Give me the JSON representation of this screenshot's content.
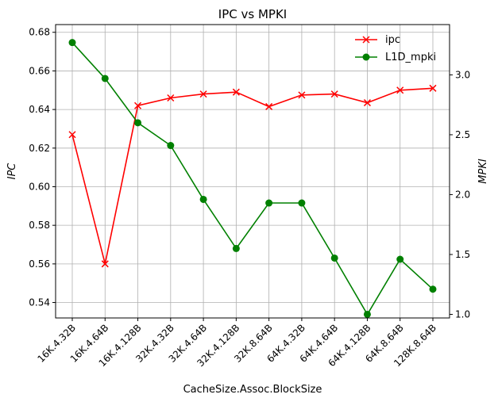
{
  "chart_data": {
    "type": "line",
    "title": "IPC vs MPKI",
    "xlabel": "CacheSize.Assoc.BlockSize",
    "ylabel_left": "IPC",
    "ylabel_right": "MPKI",
    "categories": [
      "16K.4.32B",
      "16K.4.64B",
      "16K.4.128B",
      "32K.4.32B",
      "32K.4.64B",
      "32K.4.128B",
      "32K.8.64B",
      "64K.4.32B",
      "64K.4.64B",
      "64K.4.128B",
      "64K.8.64B",
      "128K.8.64B"
    ],
    "ylim_left": [
      0.532,
      0.684
    ],
    "yticks_left": [
      0.54,
      0.56,
      0.58,
      0.6,
      0.62,
      0.64,
      0.66,
      0.68
    ],
    "yticks_left_labels": [
      "0.54",
      "0.56",
      "0.58",
      "0.60",
      "0.62",
      "0.64",
      "0.66",
      "0.68"
    ],
    "ylim_right": [
      0.97,
      3.42
    ],
    "yticks_right": [
      1.0,
      1.5,
      2.0,
      2.5,
      3.0
    ],
    "yticks_right_labels": [
      "1.0",
      "1.5",
      "2.0",
      "2.5",
      "3.0"
    ],
    "grid": true,
    "legend_position": "top-right",
    "series": [
      {
        "name": "ipc",
        "axis": "left",
        "color": "#ff0000",
        "marker": "x",
        "values": [
          0.627,
          0.56,
          0.642,
          0.646,
          0.648,
          0.649,
          0.6415,
          0.6475,
          0.648,
          0.6435,
          0.65,
          0.651
        ]
      },
      {
        "name": "L1D_mpki",
        "axis": "right",
        "color": "#008000",
        "marker": "circle",
        "values": [
          3.27,
          2.97,
          2.6,
          2.41,
          1.96,
          1.55,
          1.93,
          1.93,
          1.47,
          1.0,
          1.46,
          1.21
        ]
      }
    ]
  }
}
